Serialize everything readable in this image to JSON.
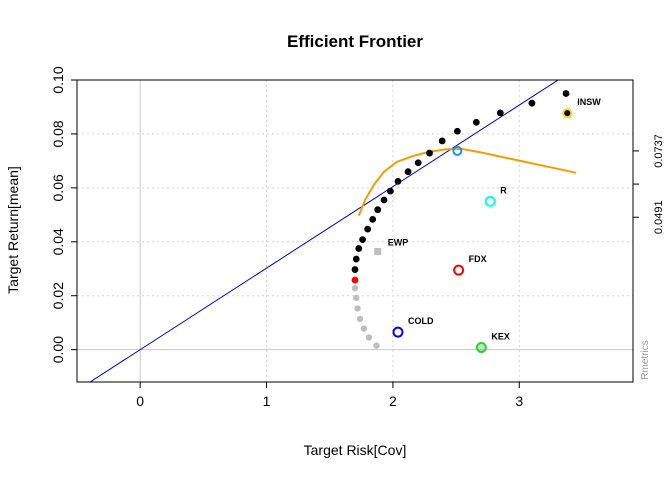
{
  "chart_data": {
    "type": "scatter",
    "title": "Efficient Frontier",
    "xlabel": "Target Risk[Cov]",
    "ylabel": "Target Return[mean]",
    "watermark": "Rmetrics",
    "xlim": [
      -0.5,
      3.9
    ],
    "ylim": [
      -0.012,
      0.1
    ],
    "grid": true,
    "x_ticks": [
      0,
      1,
      2,
      3
    ],
    "x_tick_labels": [
      "0",
      "1",
      "2",
      "3"
    ],
    "y_ticks": [
      0,
      0.02,
      0.04,
      0.06,
      0.08,
      0.1
    ],
    "y_tick_labels": [
      "0.00",
      "0.02",
      "0.04",
      "0.06",
      "0.08",
      "0.10"
    ],
    "right_axis": {
      "label_values": [
        0.0491,
        0.0737
      ],
      "labels": [
        "0.0491",
        "0.0737"
      ],
      "ticks": [
        0.0491,
        0.0614,
        0.0737
      ]
    },
    "capital_market_line": {
      "x": [
        -0.4,
        3.42
      ],
      "y": [
        -0.0121,
        0.1034
      ],
      "color": "#0000cc"
    },
    "tangency_point": {
      "x": 2.51,
      "y": 0.0737,
      "color": "#1e90ff"
    },
    "frontier_efficient": {
      "color": "#000000",
      "x": [
        1.7,
        1.71,
        1.73,
        1.76,
        1.8,
        1.84,
        1.88,
        1.93,
        1.98,
        2.04,
        2.12,
        2.2,
        2.29,
        2.39,
        2.51,
        2.66,
        2.85,
        3.1,
        3.37
      ],
      "y": [
        0.0297,
        0.0336,
        0.0375,
        0.0408,
        0.0447,
        0.0483,
        0.0519,
        0.0555,
        0.0588,
        0.0624,
        0.066,
        0.0693,
        0.0729,
        0.0774,
        0.081,
        0.0843,
        0.0878,
        0.0914,
        0.095
      ]
    },
    "frontier_minvar": {
      "x": 1.7,
      "y": 0.0258,
      "color": "#ff0000"
    },
    "frontier_inefficient": {
      "color": "#bebebe",
      "x": [
        1.7,
        1.71,
        1.72,
        1.74,
        1.77,
        1.81,
        1.87
      ],
      "y": [
        0.0228,
        0.0192,
        0.0153,
        0.0114,
        0.0078,
        0.0045,
        0.0015
      ]
    },
    "sharpe_ratio_curve": {
      "color": "#eea000",
      "x": [
        1.73,
        1.78,
        1.85,
        1.93,
        2.03,
        2.15,
        2.28,
        2.42,
        2.55,
        2.7,
        2.85,
        3.0,
        3.15,
        3.3,
        3.45
      ],
      "y": [
        0.0497,
        0.0555,
        0.0612,
        0.066,
        0.0696,
        0.0717,
        0.0733,
        0.0743,
        0.0744,
        0.0731,
        0.0716,
        0.0701,
        0.0686,
        0.0671,
        0.0656
      ]
    },
    "ewp_point": {
      "label": "EWP",
      "x": 1.88,
      "y": 0.0364,
      "color": "#bebebe"
    },
    "assets": [
      {
        "label": "INSW",
        "x": 3.38,
        "y": 0.0877,
        "color": "#ffd700"
      },
      {
        "label": "R",
        "x": 2.77,
        "y": 0.055,
        "color": "#00ffff"
      },
      {
        "label": "FDX",
        "x": 2.52,
        "y": 0.0295,
        "color": "#ff0000"
      },
      {
        "label": "COLD",
        "x": 2.04,
        "y": 0.0065,
        "color": "#0000ff"
      },
      {
        "label": "KEX",
        "x": 2.7,
        "y": 0.0008,
        "color": "#32cd32"
      }
    ]
  }
}
